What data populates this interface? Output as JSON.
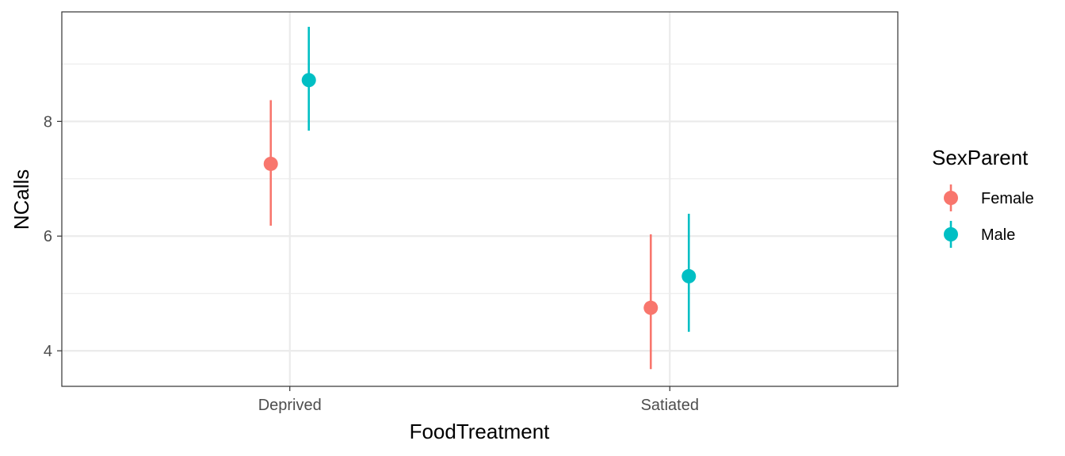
{
  "chart_data": {
    "type": "pointrange",
    "xlabel": "FoodTreatment",
    "ylabel": "NCalls",
    "categories": [
      "Deprived",
      "Satiated"
    ],
    "ylim": [
      3.38,
      9.91
    ],
    "yticks": [
      4,
      6,
      8
    ],
    "yticks_labels": [
      "4",
      "6",
      "8"
    ],
    "y_minor_ticks": [
      5,
      7,
      9
    ],
    "grid": true,
    "legend": {
      "title": "SexParent",
      "position": "right"
    },
    "series": [
      {
        "name": "Female",
        "color": "#F8766D",
        "points": [
          {
            "category": "Deprived",
            "y": 7.26,
            "ymin": 6.18,
            "ymax": 8.37
          },
          {
            "category": "Satiated",
            "y": 4.75,
            "ymin": 3.68,
            "ymax": 6.03
          }
        ]
      },
      {
        "name": "Male",
        "color": "#00BFC4",
        "points": [
          {
            "category": "Deprived",
            "y": 8.72,
            "ymin": 7.84,
            "ymax": 9.65
          },
          {
            "category": "Satiated",
            "y": 5.3,
            "ymin": 4.33,
            "ymax": 6.39
          }
        ]
      }
    ]
  }
}
